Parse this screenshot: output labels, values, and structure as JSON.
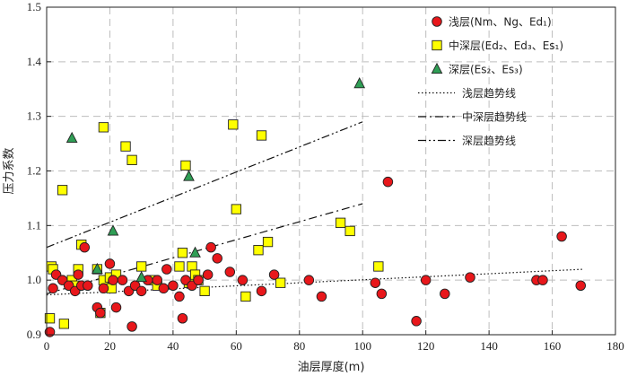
{
  "chart_data": {
    "type": "scatter",
    "xlabel": "油层厚度(m)",
    "ylabel": "压力系数",
    "xlim": [
      0,
      180
    ],
    "ylim": [
      0.9,
      1.5
    ],
    "x_ticks": [
      "0",
      "20",
      "40",
      "60",
      "80",
      "100",
      "120",
      "140",
      "160",
      "180"
    ],
    "y_ticks": [
      "0.9",
      "1.0",
      "1.1",
      "1.2",
      "1.3",
      "1.4",
      "1.5"
    ],
    "grid": "dashed",
    "legend_position": "top-right",
    "series": [
      {
        "name": "浅层(Nm、Ng、Ed₁)",
        "marker": "circle",
        "color": "#e8171b",
        "points": [
          [
            1,
            0.905
          ],
          [
            2,
            0.985
          ],
          [
            3,
            1.01
          ],
          [
            5,
            1.0
          ],
          [
            7,
            0.99
          ],
          [
            9,
            0.98
          ],
          [
            10,
            1.01
          ],
          [
            11,
            0.99
          ],
          [
            12,
            1.06
          ],
          [
            13,
            0.99
          ],
          [
            16,
            0.95
          ],
          [
            17,
            0.94
          ],
          [
            18,
            0.985
          ],
          [
            20,
            1.03
          ],
          [
            21,
            1.0
          ],
          [
            22,
            0.95
          ],
          [
            24,
            1.0
          ],
          [
            26,
            0.98
          ],
          [
            27,
            0.915
          ],
          [
            28,
            0.99
          ],
          [
            30,
            0.98
          ],
          [
            32,
            1.0
          ],
          [
            35,
            1.0
          ],
          [
            37,
            0.985
          ],
          [
            38,
            1.02
          ],
          [
            40,
            0.99
          ],
          [
            42,
            0.97
          ],
          [
            43,
            0.93
          ],
          [
            44,
            1.0
          ],
          [
            46,
            0.99
          ],
          [
            48,
            1.0
          ],
          [
            51,
            1.01
          ],
          [
            52,
            1.06
          ],
          [
            54,
            1.04
          ],
          [
            58,
            1.015
          ],
          [
            62,
            1.0
          ],
          [
            68,
            0.98
          ],
          [
            72,
            1.01
          ],
          [
            83,
            1.0
          ],
          [
            87,
            0.97
          ],
          [
            104,
            0.995
          ],
          [
            106,
            0.975
          ],
          [
            108,
            1.18
          ],
          [
            117,
            0.925
          ],
          [
            120,
            1.0
          ],
          [
            126,
            0.975
          ],
          [
            134,
            1.005
          ],
          [
            155,
            1.0
          ],
          [
            157,
            1.0
          ],
          [
            163,
            1.08
          ],
          [
            169,
            0.99
          ]
        ]
      },
      {
        "name": "中深层(Ed₂、Ed₃、Es₁)",
        "marker": "square",
        "color": "#ffff00",
        "points": [
          [
            1,
            0.93
          ],
          [
            1.5,
            1.025
          ],
          [
            2,
            1.02
          ],
          [
            5,
            1.165
          ],
          [
            5.5,
            0.92
          ],
          [
            8,
            1.0
          ],
          [
            9,
            0.99
          ],
          [
            10,
            1.02
          ],
          [
            11,
            1.065
          ],
          [
            16,
            1.02
          ],
          [
            17,
            0.94
          ],
          [
            18,
            1.28
          ],
          [
            18,
            1.0
          ],
          [
            20,
            1.005
          ],
          [
            20.5,
            0.985
          ],
          [
            22,
            1.01
          ],
          [
            25,
            1.245
          ],
          [
            27,
            1.22
          ],
          [
            30,
            1.025
          ],
          [
            34,
            1.0
          ],
          [
            35,
            0.99
          ],
          [
            42,
            1.025
          ],
          [
            43,
            1.05
          ],
          [
            44,
            1.21
          ],
          [
            45,
            0.995
          ],
          [
            46,
            1.025
          ],
          [
            47,
            1.01
          ],
          [
            48,
            1.0
          ],
          [
            50,
            0.98
          ],
          [
            59,
            1.285
          ],
          [
            60,
            1.13
          ],
          [
            63,
            0.97
          ],
          [
            67,
            1.055
          ],
          [
            68,
            1.265
          ],
          [
            70,
            1.07
          ],
          [
            74,
            0.995
          ],
          [
            93,
            1.105
          ],
          [
            96,
            1.09
          ],
          [
            105,
            1.025
          ]
        ]
      },
      {
        "name": "深层(Es₂、Es₃)",
        "marker": "triangle",
        "color": "#2f9e55",
        "points": [
          [
            8,
            1.26
          ],
          [
            16,
            1.02
          ],
          [
            21,
            1.09
          ],
          [
            30,
            1.005
          ],
          [
            45,
            1.19
          ],
          [
            47,
            1.05
          ],
          [
            99,
            1.36
          ]
        ]
      }
    ],
    "trendlines": [
      {
        "name": "浅层趋势线",
        "style": "dotted",
        "x": [
          0,
          170
        ],
        "y": [
          0.973,
          1.02
        ]
      },
      {
        "name": "中深层趋势线",
        "style": "dash-dot",
        "x": [
          0,
          100
        ],
        "y": [
          0.975,
          1.14
        ]
      },
      {
        "name": "深层趋势线",
        "style": "dash-dot-dot",
        "x": [
          0,
          100
        ],
        "y": [
          1.06,
          1.29
        ]
      }
    ]
  }
}
